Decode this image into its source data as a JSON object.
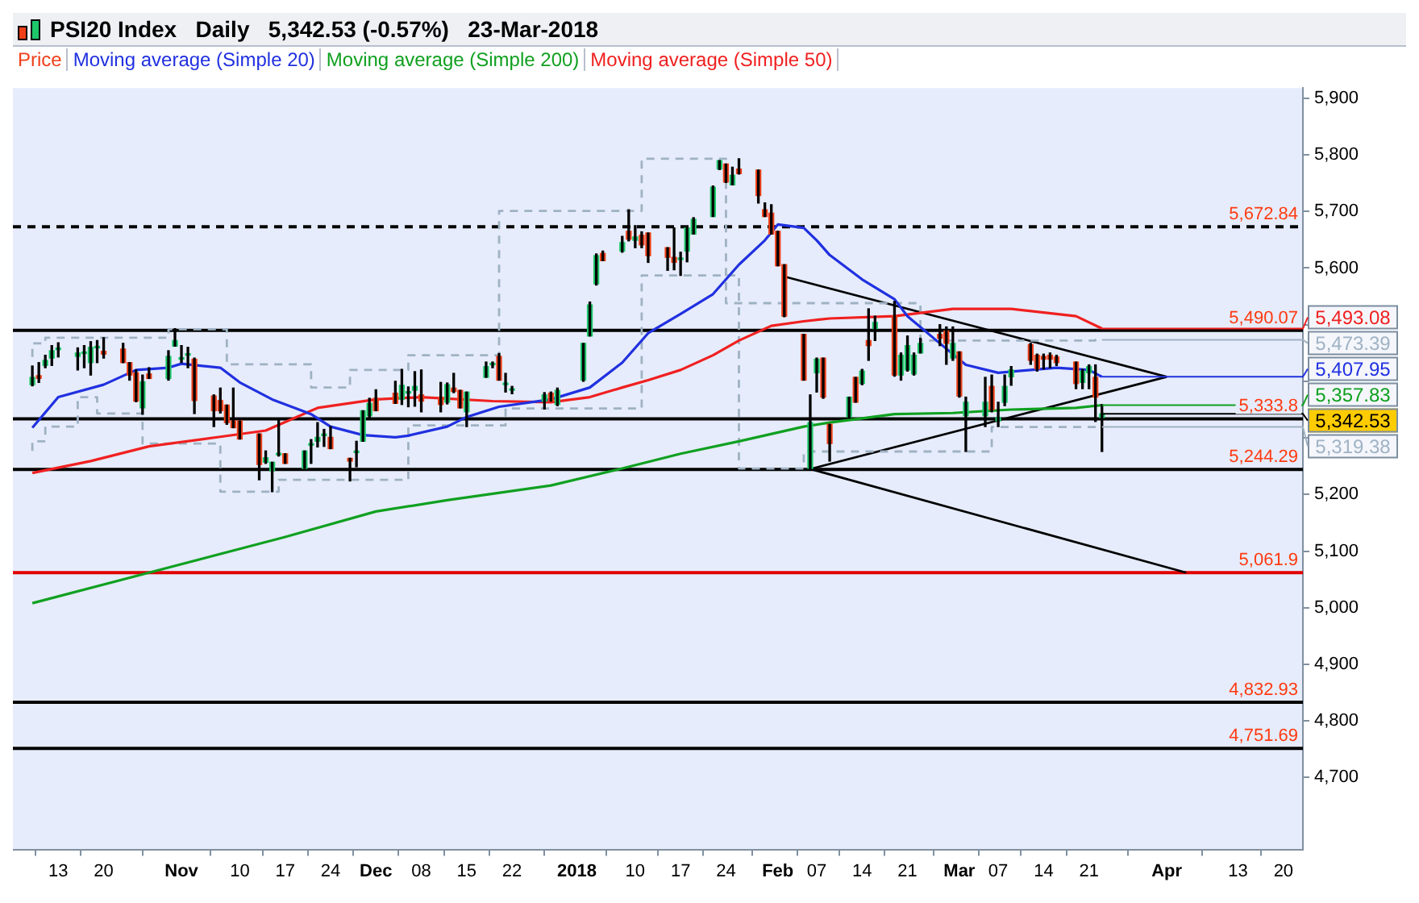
{
  "chart_data": {
    "type": "candlestick",
    "title": "PSI20 Index   Daily   5,342.53 (-0.57%)   23-Mar-2018",
    "legend": "top left",
    "xlim": [
      "2017-10-06",
      "2018-04-23"
    ],
    "xticks": [
      {
        "value": "2017-10-13",
        "label": "13"
      },
      {
        "value": "2017-10-20",
        "label": "20"
      },
      {
        "value": "2017-11-01",
        "label": "Nov"
      },
      {
        "value": "2017-11-10",
        "label": "10"
      },
      {
        "value": "2017-11-17",
        "label": "17"
      },
      {
        "value": "2017-11-24",
        "label": "24"
      },
      {
        "value": "2017-12-01",
        "label": "Dec"
      },
      {
        "value": "2017-12-08",
        "label": "08"
      },
      {
        "value": "2017-12-15",
        "label": "15"
      },
      {
        "value": "2017-12-22",
        "label": "22"
      },
      {
        "value": "2018-01-01",
        "label": "2018"
      },
      {
        "value": "2018-01-10",
        "label": "10"
      },
      {
        "value": "2018-01-17",
        "label": "17"
      },
      {
        "value": "2018-01-24",
        "label": "24"
      },
      {
        "value": "2018-02-01",
        "label": "Feb"
      },
      {
        "value": "2018-02-07",
        "label": "07"
      },
      {
        "value": "2018-02-14",
        "label": "14"
      },
      {
        "value": "2018-02-21",
        "label": "21"
      },
      {
        "value": "2018-03-01",
        "label": "Mar"
      },
      {
        "value": "2018-03-07",
        "label": "07"
      },
      {
        "value": "2018-03-14",
        "label": "14"
      },
      {
        "value": "2018-03-21",
        "label": "21"
      },
      {
        "value": "2018-04-02",
        "label": "Apr"
      },
      {
        "value": "2018-04-13",
        "label": "13"
      },
      {
        "value": "2018-04-20",
        "label": "20"
      }
    ],
    "ylim": [
      4573,
      5918
    ],
    "yticks": [
      {
        "value": 4700,
        "label": "4,700"
      },
      {
        "value": 4800,
        "label": "4,800"
      },
      {
        "value": 4900,
        "label": "4,900"
      },
      {
        "value": 5000,
        "label": "5,000"
      },
      {
        "value": 5100,
        "label": "5,100"
      },
      {
        "value": 5200,
        "label": "5,200"
      },
      {
        "value": 5300,
        "label": null
      },
      {
        "value": 5400,
        "label": null
      },
      {
        "value": 5500,
        "label": null
      },
      {
        "value": 5600,
        "label": "5,600"
      },
      {
        "value": 5700,
        "label": "5,700"
      },
      {
        "value": 5800,
        "label": "5,800"
      },
      {
        "value": 5900,
        "label": "5,900"
      }
    ],
    "series": [
      {
        "name": "Price",
        "color": "#f0401a",
        "x": [
          "2017-10-09",
          "2017-10-10",
          "2017-10-11",
          "2017-10-12",
          "2017-10-13",
          "2017-10-16",
          "2017-10-17",
          "2017-10-18",
          "2017-10-19",
          "2017-10-20",
          "2017-10-23",
          "2017-10-24",
          "2017-10-25",
          "2017-10-26",
          "2017-10-27",
          "2017-10-30",
          "2017-10-31",
          "2017-11-01",
          "2017-11-02",
          "2017-11-03",
          "2017-11-06",
          "2017-11-07",
          "2017-11-08",
          "2017-11-09",
          "2017-11-10",
          "2017-11-13",
          "2017-11-14",
          "2017-11-15",
          "2017-11-16",
          "2017-11-17",
          "2017-11-20",
          "2017-11-21",
          "2017-11-22",
          "2017-11-23",
          "2017-11-24",
          "2017-11-27",
          "2017-11-28",
          "2017-11-29",
          "2017-11-30",
          "2017-12-01",
          "2017-12-04",
          "2017-12-05",
          "2017-12-06",
          "2017-12-07",
          "2017-12-08",
          "2017-12-11",
          "2017-12-12",
          "2017-12-13",
          "2017-12-14",
          "2017-12-15",
          "2017-12-18",
          "2017-12-19",
          "2017-12-20",
          "2017-12-21",
          "2017-12-22",
          "2017-12-27",
          "2017-12-28",
          "2017-12-29",
          "2018-01-02",
          "2018-01-03",
          "2018-01-04",
          "2018-01-05",
          "2018-01-08",
          "2018-01-09",
          "2018-01-10",
          "2018-01-11",
          "2018-01-12",
          "2018-01-15",
          "2018-01-16",
          "2018-01-17",
          "2018-01-18",
          "2018-01-19",
          "2018-01-22",
          "2018-01-23",
          "2018-01-24",
          "2018-01-25",
          "2018-01-26",
          "2018-01-29",
          "2018-01-30",
          "2018-01-31",
          "2018-02-01",
          "2018-02-02",
          "2018-02-05",
          "2018-02-06",
          "2018-02-07",
          "2018-02-08",
          "2018-02-09",
          "2018-02-12",
          "2018-02-13",
          "2018-02-14",
          "2018-02-15",
          "2018-02-16",
          "2018-02-19",
          "2018-02-20",
          "2018-02-21",
          "2018-02-22",
          "2018-02-23",
          "2018-02-26",
          "2018-02-27",
          "2018-02-28",
          "2018-03-01",
          "2018-03-02",
          "2018-03-05",
          "2018-03-06",
          "2018-03-07",
          "2018-03-08",
          "2018-03-09",
          "2018-03-12",
          "2018-03-13",
          "2018-03-14",
          "2018-03-15",
          "2018-03-16",
          "2018-03-19",
          "2018-03-20",
          "2018-03-21",
          "2018-03-22",
          "2018-03-23"
        ],
        "ohlc": [
          [
            5394,
            5427,
            5392,
            5407
          ],
          [
            5410,
            5433,
            5398,
            5405
          ],
          [
            5428,
            5446,
            5424,
            5437
          ],
          [
            5441,
            5463,
            5428,
            5454
          ],
          [
            5456,
            5468,
            5443,
            5457
          ],
          [
            5444,
            5459,
            5420,
            5450
          ],
          [
            5449,
            5463,
            5424,
            5450
          ],
          [
            5433,
            5470,
            5411,
            5460
          ],
          [
            5459,
            5472,
            5433,
            5460
          ],
          [
            5453,
            5477,
            5441,
            5448
          ],
          [
            5457,
            5467,
            5433,
            5433
          ],
          [
            5433,
            5433,
            5402,
            5411
          ],
          [
            5415,
            5420,
            5364,
            5365
          ],
          [
            5353,
            5411,
            5342,
            5399
          ],
          [
            5413,
            5424,
            5405,
            5405
          ],
          [
            5405,
            5454,
            5402,
            5444
          ],
          [
            5462,
            5493,
            5462,
            5472
          ],
          [
            5439,
            5463,
            5433,
            5440
          ],
          [
            5446,
            5460,
            5424,
            5447
          ],
          [
            5439,
            5441,
            5343,
            5366
          ],
          [
            5374,
            5376,
            5320,
            5348
          ],
          [
            5366,
            5388,
            5344,
            5348
          ],
          [
            5358,
            5358,
            5324,
            5327
          ],
          [
            5330,
            5388,
            5318,
            5318
          ],
          [
            5330,
            5330,
            5298,
            5298
          ],
          [
            5307,
            5307,
            5226,
            5253
          ],
          [
            5257,
            5277,
            5255,
            5265
          ],
          [
            5242,
            5257,
            5205,
            5257
          ],
          [
            5270,
            5333,
            5268,
            5271
          ],
          [
            5272,
            5272,
            5255,
            5255
          ],
          [
            5246,
            5277,
            5246,
            5277
          ],
          [
            5287,
            5297,
            5255,
            5288
          ],
          [
            5294,
            5327,
            5284,
            5301
          ],
          [
            5304,
            5315,
            5285,
            5305
          ],
          [
            5301,
            5320,
            5281,
            5281
          ],
          [
            5264,
            5264,
            5224,
            5259
          ],
          [
            5274,
            5294,
            5249,
            5275
          ],
          [
            5294,
            5348,
            5294,
            5348
          ],
          [
            5339,
            5370,
            5333,
            5361
          ],
          [
            5370,
            5385,
            5348,
            5348
          ],
          [
            5379,
            5400,
            5361,
            5361
          ],
          [
            5368,
            5421,
            5359,
            5393
          ],
          [
            5379,
            5390,
            5355,
            5380
          ],
          [
            5384,
            5417,
            5356,
            5391
          ],
          [
            5376,
            5420,
            5346,
            5365
          ],
          [
            5372,
            5398,
            5346,
            5359
          ],
          [
            5363,
            5397,
            5360,
            5394
          ],
          [
            5388,
            5414,
            5380,
            5382
          ],
          [
            5384,
            5384,
            5353,
            5353
          ],
          [
            5346,
            5381,
            5320,
            5381
          ],
          [
            5407,
            5434,
            5407,
            5426
          ],
          [
            5429,
            5434,
            5424,
            5430
          ],
          [
            5444,
            5449,
            5402,
            5402
          ],
          [
            5394,
            5414,
            5381,
            5395
          ],
          [
            5384,
            5391,
            5378,
            5385
          ],
          [
            5365,
            5380,
            5351,
            5376
          ],
          [
            5379,
            5381,
            5365,
            5365
          ],
          [
            5359,
            5388,
            5357,
            5384
          ],
          [
            5402,
            5467,
            5400,
            5467
          ],
          [
            5480,
            5540,
            5480,
            5535
          ],
          [
            5572,
            5625,
            5570,
            5622
          ],
          [
            5626,
            5630,
            5613,
            5613
          ],
          [
            5630,
            5656,
            5628,
            5645
          ],
          [
            5665,
            5703,
            5648,
            5651
          ],
          [
            5649,
            5675,
            5636,
            5655
          ],
          [
            5658,
            5664,
            5636,
            5641
          ],
          [
            5662,
            5662,
            5610,
            5622
          ],
          [
            5636,
            5636,
            5596,
            5619
          ],
          [
            5619,
            5671,
            5597,
            5610
          ],
          [
            5615,
            5628,
            5587,
            5616
          ],
          [
            5630,
            5671,
            5611,
            5671
          ],
          [
            5660,
            5689,
            5660,
            5686
          ],
          [
            5691,
            5745,
            5691,
            5743
          ],
          [
            5775,
            5790,
            5774,
            5790
          ],
          [
            5784,
            5784,
            5751,
            5752
          ],
          [
            5747,
            5778,
            5747,
            5764
          ],
          [
            5775,
            5793,
            5766,
            5767
          ],
          [
            5773,
            5773,
            5715,
            5728
          ],
          [
            5703,
            5715,
            5691,
            5691
          ],
          [
            5697,
            5712,
            5660,
            5660
          ],
          [
            5665,
            5665,
            5604,
            5604
          ],
          [
            5606,
            5606,
            5514,
            5515
          ],
          [
            5483,
            5483,
            5402,
            5402
          ],
          [
            5246,
            5376,
            5244,
            5327
          ],
          [
            5415,
            5441,
            5381,
            5439
          ],
          [
            5441,
            5441,
            5370,
            5372
          ],
          [
            5324,
            5324,
            5259,
            5290
          ],
          [
            5337,
            5372,
            5335,
            5372
          ],
          [
            5407,
            5407,
            5363,
            5363
          ],
          [
            5396,
            5421,
            5394,
            5418
          ],
          [
            5472,
            5528,
            5437,
            5463
          ],
          [
            5493,
            5515,
            5472,
            5504
          ],
          [
            5515,
            5541,
            5409,
            5411
          ],
          [
            5411,
            5450,
            5402,
            5446
          ],
          [
            5420,
            5480,
            5418,
            5463
          ],
          [
            5413,
            5450,
            5411,
            5446
          ],
          [
            5450,
            5476,
            5450,
            5467
          ],
          [
            5483,
            5500,
            5463,
            5476
          ],
          [
            5489,
            5496,
            5430,
            5467
          ],
          [
            5441,
            5496,
            5437,
            5467
          ],
          [
            5452,
            5452,
            5372,
            5374
          ],
          [
            5339,
            5372,
            5276,
            5363
          ],
          [
            5339,
            5407,
            5320,
            5363
          ],
          [
            5391,
            5411,
            5346,
            5350
          ],
          [
            5330,
            5363,
            5320,
            5336
          ],
          [
            5363,
            5411,
            5357,
            5391
          ],
          [
            5408,
            5426,
            5393,
            5420
          ],
          [
            5465,
            5467,
            5430,
            5437
          ],
          [
            5446,
            5448,
            5418,
            5422
          ],
          [
            5444,
            5448,
            5422,
            5439
          ],
          [
            5446,
            5450,
            5424,
            5439
          ],
          [
            5443,
            5446,
            5428,
            5433
          ],
          [
            5434,
            5434,
            5387,
            5396
          ],
          [
            5398,
            5421,
            5387,
            5418
          ],
          [
            5415,
            5429,
            5387,
            5426
          ],
          [
            5407,
            5429,
            5329,
            5372
          ],
          [
            5336,
            5359,
            5276,
            5342.53
          ]
        ],
        "colors": [
          "#1ec86a",
          "#f0401a",
          "#1ec86a",
          "#1ec86a",
          "#1ec86a",
          "#1ec86a",
          "#1ec86a",
          "#1ec86a",
          "#1ec86a",
          "#f0401a",
          "#f0401a",
          "#f0401a",
          "#f0401a",
          "#1ec86a",
          "#f0401a",
          "#1ec86a",
          "#1ec86a",
          "#1ec86a",
          "#1ec86a",
          "#f0401a",
          "#f0401a",
          "#f0401a",
          "#f0401a",
          "#f0401a",
          "#f0401a",
          "#f0401a",
          "#1ec86a",
          "#1ec86a",
          "#1ec86a",
          "#f0401a",
          "#1ec86a",
          "#1ec86a",
          "#1ec86a",
          "#1ec86a",
          "#f0401a",
          "#f0401a",
          "#1ec86a",
          "#1ec86a",
          "#1ec86a",
          "#f0401a",
          "#f0401a",
          "#1ec86a",
          "#1ec86a",
          "#1ec86a",
          "#f0401a",
          "#f0401a",
          "#1ec86a",
          "#f0401a",
          "#f0401a",
          "#1ec86a",
          "#1ec86a",
          "#1ec86a",
          "#f0401a",
          "#1ec86a",
          "#1ec86a",
          "#1ec86a",
          "#f0401a",
          "#1ec86a",
          "#1ec86a",
          "#1ec86a",
          "#1ec86a",
          "#f0401a",
          "#1ec86a",
          "#f0401a",
          "#1ec86a",
          "#f0401a",
          "#f0401a",
          "#f0401a",
          "#f0401a",
          "#1ec86a",
          "#1ec86a",
          "#1ec86a",
          "#1ec86a",
          "#1ec86a",
          "#f0401a",
          "#1ec86a",
          "#f0401a",
          "#f0401a",
          "#f0401a",
          "#f0401a",
          "#f0401a",
          "#f0401a",
          "#f0401a",
          "#1ec86a",
          "#1ec86a",
          "#f0401a",
          "#f0401a",
          "#1ec86a",
          "#f0401a",
          "#1ec86a",
          "#f0401a",
          "#1ec86a",
          "#f0401a",
          "#1ec86a",
          "#1ec86a",
          "#1ec86a",
          "#1ec86a",
          "#f0401a",
          "#f0401a",
          "#1ec86a",
          "#f0401a",
          "#1ec86a",
          "#1ec86a",
          "#f0401a",
          "#1ec86a",
          "#1ec86a",
          "#1ec86a",
          "#f0401a",
          "#f0401a",
          "#f0401a",
          "#f0401a",
          "#f0401a",
          "#f0401a",
          "#1ec86a",
          "#1ec86a",
          "#f0401a",
          "#1ec86a"
        ]
      },
      {
        "type": "line",
        "name": "Moving average (Simple 20)",
        "color": "#2030e0",
        "x": [
          "2017-10-09",
          "2017-10-13",
          "2017-10-20",
          "2017-10-25",
          "2017-10-30",
          "2017-11-01",
          "2017-11-07",
          "2017-11-10",
          "2017-11-15",
          "2017-11-21",
          "2017-11-24",
          "2017-11-29",
          "2017-12-04",
          "2017-12-06",
          "2017-12-12",
          "2017-12-15",
          "2017-12-20",
          "2017-12-28",
          "2018-01-03",
          "2018-01-08",
          "2018-01-12",
          "2018-01-17",
          "2018-01-22",
          "2018-01-26",
          "2018-01-30",
          "2018-02-01",
          "2018-02-05",
          "2018-02-07",
          "2018-02-09",
          "2018-02-14",
          "2018-02-19",
          "2018-02-21",
          "2018-02-26",
          "2018-03-02",
          "2018-03-07",
          "2018-03-12",
          "2018-03-16",
          "2018-03-21",
          "2018-03-23"
        ],
        "values": [
          5318,
          5372,
          5394,
          5420,
          5424,
          5431,
          5424,
          5398,
          5368,
          5342,
          5320,
          5305,
          5301,
          5304,
          5320,
          5337,
          5355,
          5368,
          5389,
          5433,
          5485,
          5519,
          5554,
          5606,
          5649,
          5677,
          5671,
          5649,
          5623,
          5580,
          5545,
          5515,
          5467,
          5429,
          5415,
          5420,
          5424,
          5420,
          5407.95
        ]
      },
      {
        "type": "line",
        "name": "Moving average (Simple 200)",
        "color": "#10a020",
        "x": [
          "2017-10-09",
          "2017-10-27",
          "2017-11-17",
          "2017-12-01",
          "2017-12-12",
          "2017-12-28",
          "2018-01-08",
          "2018-01-17",
          "2018-01-26",
          "2018-02-05",
          "2018-02-09",
          "2018-02-19",
          "2018-02-28",
          "2018-03-09",
          "2018-03-19",
          "2018-03-23"
        ],
        "values": [
          5008,
          5062,
          5125,
          5170,
          5190,
          5216,
          5246,
          5272,
          5294,
          5320,
          5327,
          5342,
          5344,
          5350,
          5353,
          5357.83
        ]
      },
      {
        "type": "line",
        "name": "Moving average (Simple 50)",
        "color": "#f02020",
        "x": [
          "2017-10-09",
          "2017-10-18",
          "2017-10-27",
          "2017-11-07",
          "2017-11-14",
          "2017-11-22",
          "2017-12-01",
          "2017-12-08",
          "2017-12-19",
          "2017-12-28",
          "2018-01-03",
          "2018-01-08",
          "2018-01-12",
          "2018-01-17",
          "2018-01-22",
          "2018-01-26",
          "2018-01-31",
          "2018-02-05",
          "2018-02-09",
          "2018-02-19",
          "2018-02-28",
          "2018-03-09",
          "2018-03-19",
          "2018-03-23"
        ],
        "values": [
          5238,
          5259,
          5285,
          5302,
          5313,
          5353,
          5368,
          5372,
          5365,
          5363,
          5372,
          5389,
          5402,
          5420,
          5446,
          5472,
          5498,
          5506,
          5511,
          5515,
          5528,
          5528,
          5515,
          5493.08
        ]
      },
      {
        "type": "step",
        "color": "#9fb2c4",
        "line_style": "dashed",
        "x": [
          "2017-10-09",
          "2017-10-11",
          "2017-10-30",
          "2017-11-08",
          "2017-11-21",
          "2017-11-27",
          "2017-12-06",
          "2017-12-20",
          "2018-01-11",
          "2018-01-24",
          "2018-02-23",
          "2018-03-22",
          "2018-03-23"
        ],
        "values": [
          5443,
          5467,
          5477,
          5492,
          5430,
          5389,
          5420,
          5446,
          5701,
          5793,
          5538,
          5472,
          5473.39
        ]
      },
      {
        "type": "step",
        "color": "#9fb2c4",
        "line_style": "dashed",
        "x": [
          "2017-10-09",
          "2017-10-11",
          "2017-10-16",
          "2017-10-19",
          "2017-10-26",
          "2017-11-07",
          "2017-11-16",
          "2017-12-06",
          "2017-12-21",
          "2018-01-11",
          "2018-01-26",
          "2018-02-05",
          "2018-03-06",
          "2018-03-23"
        ],
        "values": [
          5277,
          5294,
          5320,
          5372,
          5343,
          5290,
          5205,
          5226,
          5322,
          5352,
          5587,
          5246,
          5276,
          5319.38
        ]
      },
      {
        "type": "line",
        "color": "#000000",
        "x": [
          "2018-02-02",
          "2018-04-02"
        ],
        "values": [
          5585,
          5408
        ]
      },
      {
        "type": "line",
        "color": "#000000",
        "x": [
          "2018-02-06",
          "2018-04-02"
        ],
        "values": [
          5245,
          5408
        ]
      },
      {
        "type": "line",
        "color": "#000000",
        "x": [
          "2018-02-06",
          "2018-04-05"
        ],
        "values": [
          5245,
          5062
        ]
      }
    ],
    "ref_lines": [
      {
        "axis": "y",
        "value": 5672.84,
        "label": "5,672.84",
        "color": "#000000",
        "line_style": "dashed"
      },
      {
        "axis": "y",
        "value": 5490.07,
        "label": "5,490.07",
        "color": "#000000"
      },
      {
        "axis": "y",
        "value": 5333.8,
        "label": "5,333.8",
        "color": "#000000"
      },
      {
        "axis": "y",
        "value": 5244.29,
        "label": "5,244.29",
        "color": "#000000"
      },
      {
        "axis": "y",
        "value": 5061.9,
        "label": "5,061.9",
        "color": "#e00000"
      },
      {
        "axis": "y",
        "value": 4832.93,
        "label": "4,832.93",
        "color": "#000000"
      },
      {
        "axis": "y",
        "value": 4751.69,
        "label": "4,751.69",
        "color": "#000000"
      }
    ],
    "annotations": [
      {
        "text": "5,493.08",
        "x": "2018-03-23",
        "y": 5493.08
      },
      {
        "text": "5,473.39",
        "x": "2018-03-23",
        "y": 5473.39
      },
      {
        "text": "5,407.95",
        "x": "2018-03-23",
        "y": 5407.95
      },
      {
        "text": "5,357.83",
        "x": "2018-03-23",
        "y": 5357.83
      },
      {
        "text": "5,342.53",
        "x": "2018-03-23",
        "y": 5342.53
      },
      {
        "text": "5,319.38",
        "x": "2018-03-23",
        "y": 5319.38
      }
    ]
  }
}
